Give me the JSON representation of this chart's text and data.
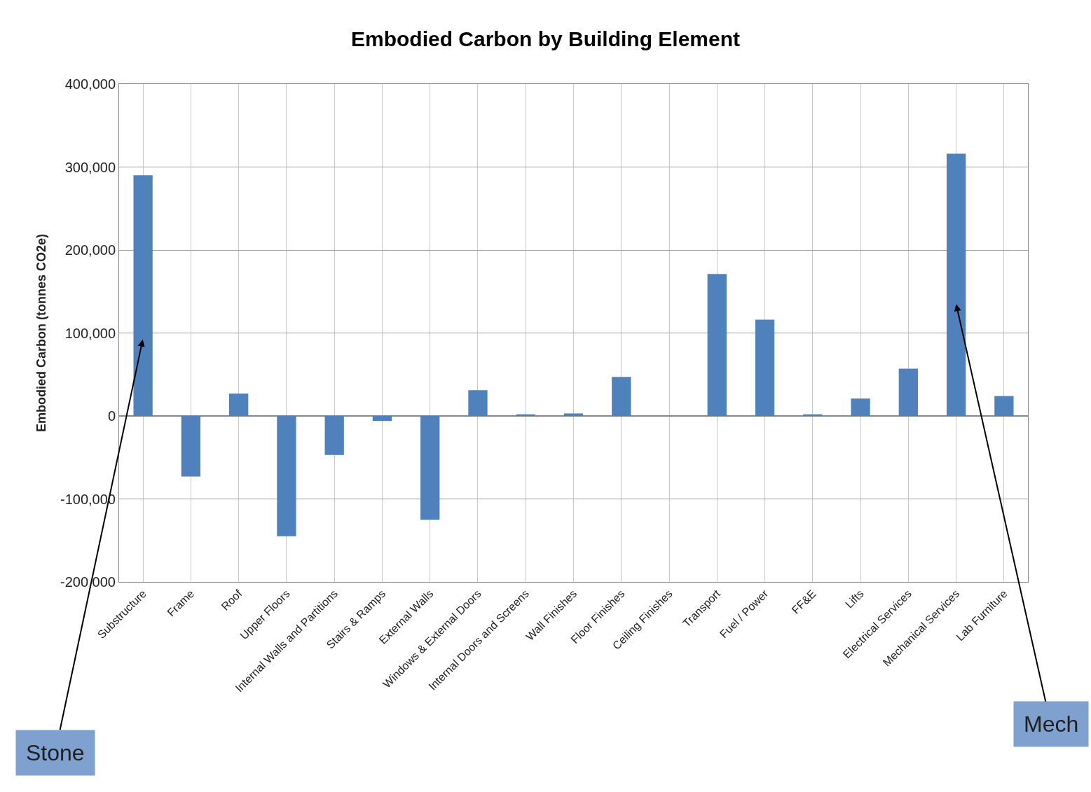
{
  "chart_data": {
    "type": "bar",
    "title": "Embodied Carbon by Building Element",
    "ylabel": "Embodied Carbon (tonnes CO2e)",
    "categories": [
      "Substructure",
      "Frame",
      "Roof",
      "Upper Floors",
      "Internal Walls and Partitions",
      "Stairs & Ramps",
      "External Walls",
      "Windows & External Doors",
      "Internal Doors and Screens",
      "Wall Finishes",
      "Floor Finishes",
      "Ceiling Finishes",
      "Transport",
      "Fuel / Power",
      "FF&E",
      "Lifts",
      "Electrical Services",
      "Mechanical Services",
      "Lab Furniture"
    ],
    "values": [
      290000,
      -73000,
      27000,
      -145000,
      -47000,
      -6000,
      -125000,
      31000,
      2000,
      3000,
      47000,
      0,
      171000,
      116000,
      2000,
      21000,
      57000,
      316000,
      24000
    ],
    "color": "#4f81bd",
    "ylim": [
      -200000,
      400000
    ],
    "yticks": [
      {
        "value": -200000,
        "label": "-200,000"
      },
      {
        "value": -100000,
        "label": "-100,000"
      },
      0,
      {
        "value": 100000,
        "label": "100,000"
      },
      {
        "value": 200000,
        "label": "200,000"
      },
      {
        "value": 300000,
        "label": "300,000"
      },
      {
        "value": 400000,
        "label": "400,000"
      }
    ],
    "grid": true,
    "annotations": [
      "Stone",
      "Mech"
    ]
  }
}
